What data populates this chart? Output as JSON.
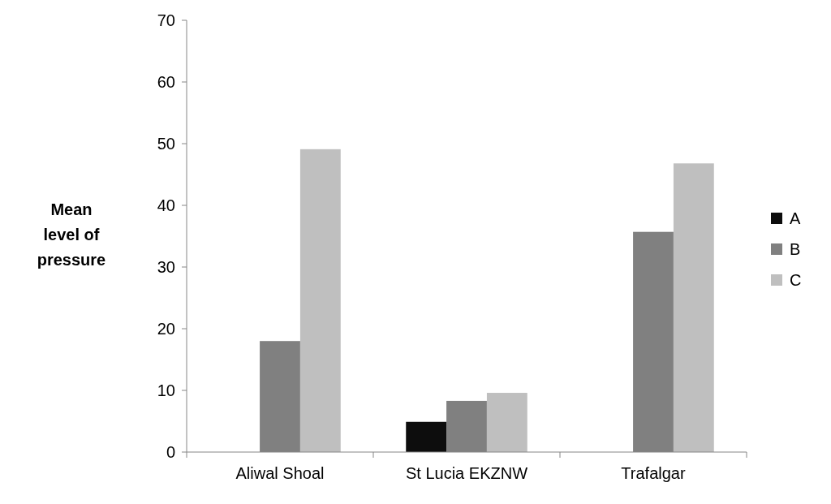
{
  "chart_data": {
    "type": "bar",
    "ylabel": "Mean level of pressure",
    "categories": [
      "Aliwal Shoal",
      "St Lucia EKZNW",
      "Trafalgar"
    ],
    "series": [
      {
        "name": "A",
        "color": "#0d0d0d",
        "values": [
          null,
          4.9,
          null
        ]
      },
      {
        "name": "B",
        "color": "#808080",
        "values": [
          18,
          8.3,
          35.7
        ]
      },
      {
        "name": "C",
        "color": "#bfbfbf",
        "values": [
          49.1,
          9.6,
          46.8
        ]
      }
    ],
    "ylim": [
      0,
      70
    ],
    "yticks": [
      0,
      10,
      20,
      30,
      40,
      50,
      60,
      70
    ],
    "grid": false,
    "legend": "right"
  }
}
